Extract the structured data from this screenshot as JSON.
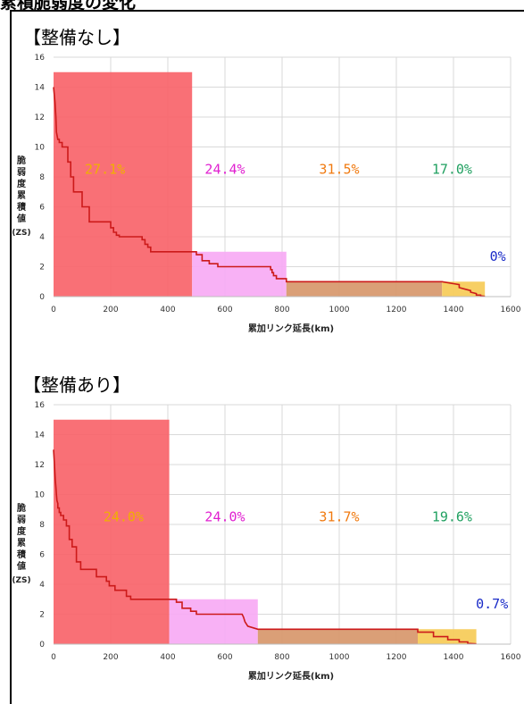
{
  "page": {
    "title": "累積脆弱度の変化"
  },
  "chart_data": [
    {
      "type": "area",
      "title": "【整備なし】",
      "xlabel": "累加リンク延長(km)",
      "ylabel": [
        "脆",
        "弱",
        "度",
        "累",
        "積",
        "値",
        "(ZS)"
      ],
      "xlim": [
        0,
        1600
      ],
      "ylim": [
        0,
        16
      ],
      "xticks": [
        0,
        200,
        400,
        600,
        800,
        1000,
        1200,
        1400,
        1600
      ],
      "yticks": [
        0,
        2,
        4,
        6,
        8,
        10,
        12,
        14,
        16
      ],
      "grid": true,
      "bands": [
        {
          "x0": 0,
          "x1": 485,
          "y": 15,
          "color": "#f8646a",
          "opacity": 0.92
        },
        {
          "x0": 485,
          "x1": 815,
          "y": 3,
          "color": "#f7a8f4",
          "opacity": 0.9
        },
        {
          "x0": 815,
          "x1": 1360,
          "y": 1,
          "color": "#d89a70",
          "opacity": 0.95
        },
        {
          "x0": 1360,
          "x1": 1510,
          "y": 1,
          "color": "#f7cc5c",
          "opacity": 0.95
        }
      ],
      "labels": [
        {
          "text": "27.1%",
          "x": 180,
          "y": 8.2,
          "color": "#f0b000"
        },
        {
          "text": "24.4%",
          "x": 600,
          "y": 8.2,
          "color": "#e020d0"
        },
        {
          "text": "31.5%",
          "x": 1000,
          "y": 8.2,
          "color": "#f07a10"
        },
        {
          "text": "17.0%",
          "x": 1395,
          "y": 8.2,
          "color": "#20a060"
        },
        {
          "text": "0%",
          "x": 1555,
          "y": 2.4,
          "color": "#1a2bc8"
        }
      ],
      "line": {
        "color": "#cc1a1a",
        "x": [
          0,
          5,
          8,
          10,
          15,
          20,
          20,
          25,
          30,
          30,
          35,
          50,
          50,
          60,
          60,
          70,
          70,
          80,
          80,
          100,
          100,
          125,
          125,
          150,
          150,
          170,
          170,
          180,
          180,
          190,
          190,
          200,
          200,
          210,
          210,
          220,
          220,
          230,
          230,
          240,
          240,
          310,
          310,
          320,
          320,
          330,
          330,
          340,
          340,
          485,
          485,
          500,
          500,
          520,
          520,
          545,
          545,
          575,
          575,
          600,
          600,
          760,
          760,
          765,
          765,
          770,
          770,
          780,
          780,
          815,
          815,
          1360,
          1360,
          1420,
          1420,
          1460,
          1460,
          1480,
          1480,
          1495,
          1495,
          1510
        ],
        "y": [
          14,
          13,
          12,
          11,
          10.5,
          10.5,
          10.3,
          10.3,
          10.3,
          10,
          10,
          10,
          9,
          9,
          8,
          8,
          7,
          7,
          7,
          7,
          6,
          6,
          5,
          5,
          5,
          5,
          5,
          5,
          5,
          5,
          5,
          5,
          4.6,
          4.6,
          4.3,
          4.3,
          4.1,
          4.1,
          4,
          4,
          4,
          4,
          3.8,
          3.8,
          3.5,
          3.5,
          3.3,
          3.3,
          3,
          3,
          3,
          3,
          2.8,
          2.8,
          2.4,
          2.4,
          2.2,
          2.2,
          2,
          2,
          2,
          2,
          1.8,
          1.8,
          1.6,
          1.6,
          1.4,
          1.4,
          1.2,
          1.2,
          1,
          1,
          1,
          0.8,
          0.6,
          0.4,
          0.3,
          0.2,
          0.1,
          0.1,
          0.05,
          0.02
        ]
      }
    },
    {
      "type": "area",
      "title": "【整備あり】",
      "xlabel": "累加リンク延長(km)",
      "ylabel": [
        "脆",
        "弱",
        "度",
        "累",
        "積",
        "値",
        "(ZS)"
      ],
      "xlim": [
        0,
        1600
      ],
      "ylim": [
        0,
        16
      ],
      "xticks": [
        0,
        200,
        400,
        600,
        800,
        1000,
        1200,
        1400,
        1600
      ],
      "yticks": [
        0,
        2,
        4,
        6,
        8,
        10,
        12,
        14,
        16
      ],
      "grid": true,
      "bands": [
        {
          "x0": 0,
          "x1": 405,
          "y": 15,
          "color": "#f8646a",
          "opacity": 0.92
        },
        {
          "x0": 405,
          "x1": 715,
          "y": 3,
          "color": "#f7a8f4",
          "opacity": 0.9
        },
        {
          "x0": 715,
          "x1": 1275,
          "y": 1,
          "color": "#d89a70",
          "opacity": 0.95
        },
        {
          "x0": 1275,
          "x1": 1480,
          "y": 1,
          "color": "#f7cc5c",
          "opacity": 0.95
        }
      ],
      "labels": [
        {
          "text": "24.0%",
          "x": 245,
          "y": 8.2,
          "color": "#f0b000"
        },
        {
          "text": "24.0%",
          "x": 600,
          "y": 8.2,
          "color": "#e020d0"
        },
        {
          "text": "31.7%",
          "x": 1000,
          "y": 8.2,
          "color": "#f07a10"
        },
        {
          "text": "19.6%",
          "x": 1395,
          "y": 8.2,
          "color": "#20a060"
        },
        {
          "text": "0.7%",
          "x": 1535,
          "y": 2.4,
          "color": "#1a2bc8"
        }
      ],
      "line": {
        "color": "#cc1a1a",
        "x": [
          0,
          3,
          6,
          8,
          10,
          12,
          15,
          15,
          20,
          20,
          25,
          25,
          35,
          35,
          45,
          45,
          55,
          55,
          65,
          65,
          80,
          80,
          95,
          95,
          150,
          150,
          185,
          185,
          195,
          195,
          215,
          215,
          255,
          255,
          270,
          270,
          405,
          405,
          430,
          430,
          450,
          450,
          480,
          480,
          500,
          500,
          660,
          660,
          665,
          665,
          670,
          670,
          680,
          680,
          715,
          715,
          1275,
          1275,
          1330,
          1330,
          1380,
          1380,
          1420,
          1420,
          1450,
          1450,
          1480
        ],
        "y": [
          13,
          12,
          11,
          10.5,
          10,
          9.6,
          9.4,
          9.1,
          9.1,
          8.8,
          8.8,
          8.6,
          8.6,
          8.3,
          8.3,
          7.9,
          7.9,
          7,
          7,
          6.5,
          6.5,
          5.5,
          5.5,
          5,
          5,
          4.5,
          4.5,
          4.2,
          4.2,
          3.9,
          3.9,
          3.6,
          3.6,
          3.2,
          3.2,
          3,
          3,
          3,
          3,
          2.8,
          2.8,
          2.4,
          2.4,
          2.2,
          2.2,
          2,
          2,
          2,
          1.8,
          1.8,
          1.5,
          1.5,
          1.2,
          1.2,
          1,
          1,
          1,
          0.8,
          0.8,
          0.5,
          0.5,
          0.3,
          0.3,
          0.15,
          0.15,
          0.05,
          0.02
        ]
      }
    }
  ]
}
